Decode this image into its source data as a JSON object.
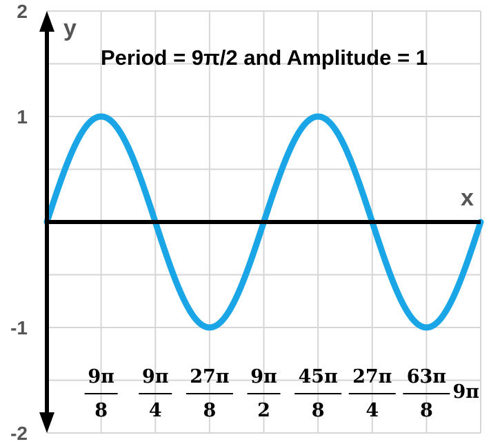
{
  "chart_data": {
    "type": "line",
    "title": "Period = 9π/2 and Amplitude = 1",
    "xlabel": "x",
    "ylabel": "y",
    "xlim_pi": [
      0,
      9
    ],
    "ylim": [
      -2,
      2
    ],
    "grid": true,
    "y_ticks": [
      {
        "value": 2,
        "label": "2"
      },
      {
        "value": 1,
        "label": "1"
      },
      {
        "value": -1,
        "label": "-1"
      },
      {
        "value": -2,
        "label": "-2"
      }
    ],
    "x_ticks": [
      {
        "value_pi": 1.125,
        "numerator": "9π",
        "denominator": "8"
      },
      {
        "value_pi": 2.25,
        "numerator": "9π",
        "denominator": "4"
      },
      {
        "value_pi": 3.375,
        "numerator": "27π",
        "denominator": "8"
      },
      {
        "value_pi": 4.5,
        "numerator": "9π",
        "denominator": "2"
      },
      {
        "value_pi": 5.625,
        "numerator": "45π",
        "denominator": "8"
      },
      {
        "value_pi": 6.75,
        "numerator": "27π",
        "denominator": "4"
      },
      {
        "value_pi": 7.875,
        "numerator": "63π",
        "denominator": "8"
      },
      {
        "value_pi": 9,
        "label": "9π"
      }
    ],
    "series": [
      {
        "function": "sin(4x/9)",
        "amplitude": 1,
        "period_pi": 4.5,
        "color": "#1aa6e6"
      }
    ]
  }
}
